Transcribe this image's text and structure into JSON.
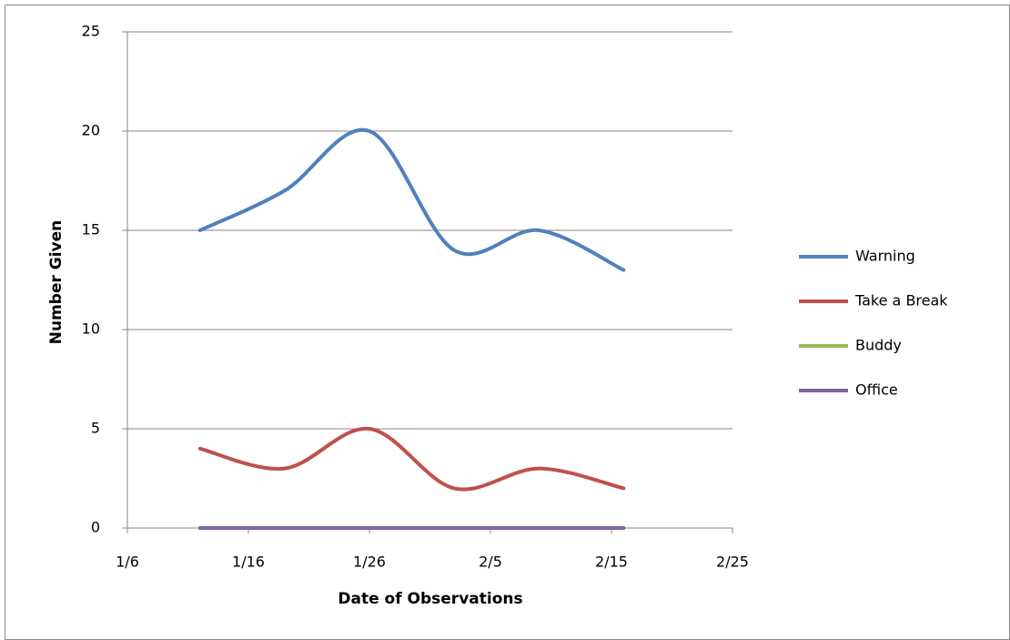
{
  "chart_data": {
    "type": "line",
    "x_label": "Date of Observations",
    "y_label": "Number Given",
    "x": [
      "1/12",
      "1/19",
      "1/26",
      "2/2",
      "2/9",
      "2/16"
    ],
    "series": [
      {
        "name": "Warning",
        "color": "#4f81bd",
        "values": [
          15,
          17,
          20,
          14,
          15,
          13
        ]
      },
      {
        "name": "Take a Break",
        "color": "#c0504d",
        "values": [
          4,
          3,
          5,
          2,
          3,
          2
        ]
      },
      {
        "name": "Buddy",
        "color": "#9bbb59",
        "values": [
          0,
          0,
          0,
          0,
          0,
          0
        ]
      },
      {
        "name": "Office",
        "color": "#8064a2",
        "values": [
          0,
          0,
          0,
          0,
          0,
          0
        ]
      }
    ],
    "xlim": [
      "1/6",
      "2/25"
    ],
    "xticks": [
      "1/6",
      "1/16",
      "1/26",
      "2/5",
      "2/15",
      "2/25"
    ],
    "ylim": [
      0,
      25
    ],
    "yticks": [
      0,
      5,
      10,
      15,
      20,
      25
    ],
    "grid": true,
    "smooth": true,
    "legend": "right"
  }
}
